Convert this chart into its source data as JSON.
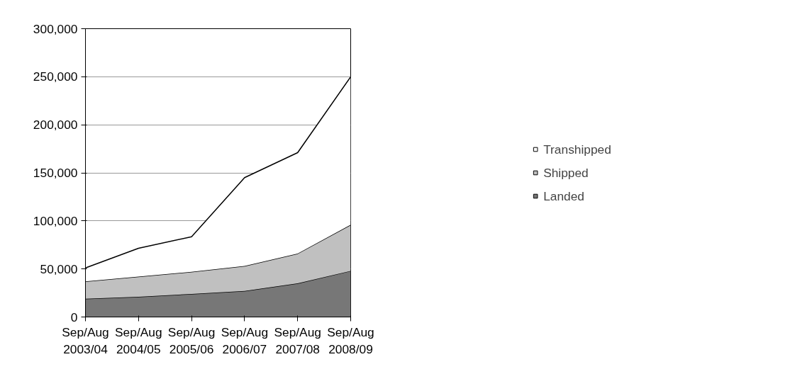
{
  "chart_data": {
    "type": "area",
    "stacked": true,
    "categories": [
      "Sep/Aug\n2003/04",
      "Sep/Aug\n2004/05",
      "Sep/Aug\n2005/06",
      "Sep/Aug\n2006/07",
      "Sep/Aug\n2007/08",
      "Sep/Aug\n2008/09"
    ],
    "series": [
      {
        "name": "Landed",
        "color": "#777777",
        "values": [
          19000,
          21000,
          24000,
          27000,
          35000,
          48000
        ]
      },
      {
        "name": "Shipped",
        "color": "#c0c0c0",
        "values": [
          18000,
          21000,
          23000,
          26000,
          31000,
          48000
        ]
      },
      {
        "name": "Transhipped",
        "color": "#ffffff",
        "values": [
          14000,
          29500,
          36500,
          92000,
          105000,
          154000
        ]
      }
    ],
    "ylim": [
      0,
      300000
    ],
    "yticks": [
      {
        "value": 0,
        "label": "0"
      },
      {
        "value": 50000,
        "label": "50,000"
      },
      {
        "value": 100000,
        "label": "100,000"
      },
      {
        "value": 150000,
        "label": "150,000"
      },
      {
        "value": 200000,
        "label": "200,000"
      },
      {
        "value": 250000,
        "label": "250,000"
      },
      {
        "value": 300000,
        "label": "300,000"
      }
    ],
    "grid": "y",
    "legend": "right"
  }
}
